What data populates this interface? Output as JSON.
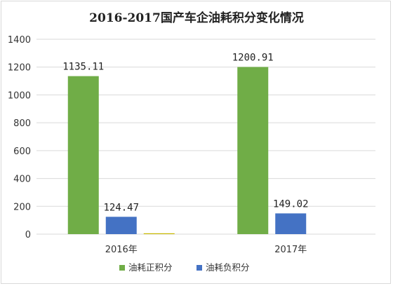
{
  "chart_data": {
    "type": "bar",
    "title": "2016-2017国产车企油耗积分变化情况",
    "categories": [
      "2016年",
      "2017年"
    ],
    "series": [
      {
        "name": "油耗正积分",
        "color": "#70ad47",
        "values": [
          1135.11,
          1200.91
        ],
        "labels": [
          "1135.11",
          "1200.91"
        ]
      },
      {
        "name": "油耗负积分",
        "color": "#4472c4",
        "values": [
          124.47,
          149.02
        ],
        "labels": [
          "124.47",
          "149.02"
        ]
      },
      {
        "name": "",
        "color": "#c9b800",
        "values": [
          6,
          0
        ],
        "labels": [
          "",
          ""
        ]
      }
    ],
    "ylim": [
      0,
      1400
    ],
    "yticks": [
      "0",
      "200",
      "400",
      "600",
      "800",
      "1000",
      "1200",
      "1400"
    ],
    "grid": true,
    "legend_position": "bottom",
    "xlabel": "",
    "ylabel": ""
  }
}
